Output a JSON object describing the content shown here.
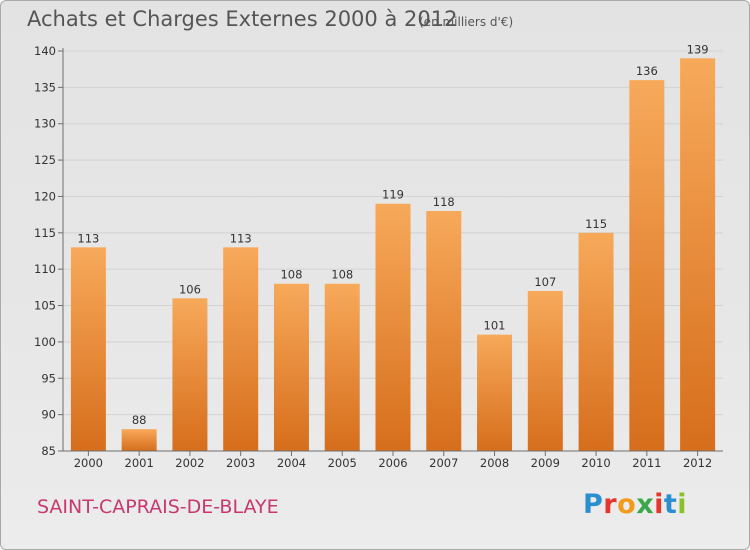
{
  "header": {
    "title": "Achats et Charges Externes 2000 à 2012",
    "unit": "(en milliers d'€)"
  },
  "footer": {
    "commune": "SAINT-CAPRAIS-DE-BLAYE",
    "brand": "Proxiti",
    "brand_colors": [
      "#2a8fd0",
      "#e5362e",
      "#f29a1c",
      "#3aa849",
      "#e5362e",
      "#2a8fd0",
      "#8bbf2e"
    ]
  },
  "colors": {
    "bar_top": "#f7a95a",
    "bar_bottom": "#d66e1c",
    "axis": "#6e6e6e",
    "grid": "#d2d2d2"
  },
  "chart_data": {
    "type": "bar",
    "title": "Achats et Charges Externes 2000 à 2012",
    "subtitle": "(en milliers d'€)",
    "xlabel": "",
    "ylabel": "",
    "categories": [
      "2000",
      "2001",
      "2002",
      "2003",
      "2004",
      "2005",
      "2006",
      "2007",
      "2008",
      "2009",
      "2010",
      "2011",
      "2012"
    ],
    "values": [
      113,
      88,
      106,
      113,
      108,
      108,
      119,
      118,
      101,
      107,
      115,
      136,
      139
    ],
    "ylim": [
      85,
      140
    ],
    "yticks": [
      85,
      90,
      95,
      100,
      105,
      110,
      115,
      120,
      125,
      130,
      135,
      140
    ],
    "grid": true
  }
}
